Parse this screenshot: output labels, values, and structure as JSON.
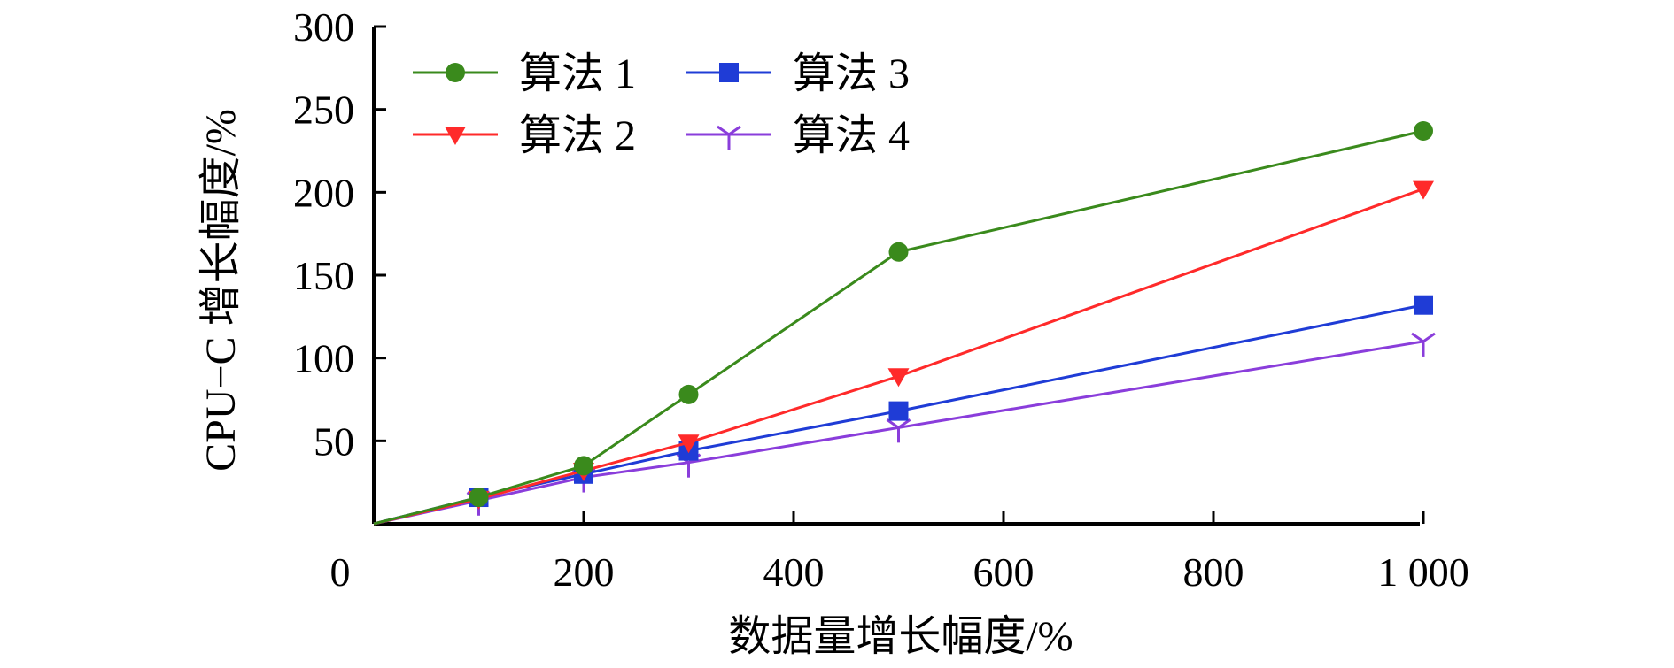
{
  "chart_data": {
    "type": "line",
    "x_tick_values": [
      0,
      200,
      400,
      600,
      800,
      1000
    ],
    "x_tick_labels": [
      "0",
      "200",
      "400",
      "600",
      "800",
      "1 000"
    ],
    "y_tick_values": [
      50,
      100,
      150,
      200,
      250,
      300
    ],
    "y_tick_labels": [
      "50",
      "100",
      "150",
      "200",
      "250",
      "300"
    ],
    "x_category_index": [
      0,
      1,
      2,
      3,
      5,
      10
    ],
    "xlabel": "数据量增长幅度/%",
    "ylabel": "CPU−C 增长幅度/%",
    "ylim": [
      0,
      300
    ],
    "grid": false,
    "legend_position": "top-left",
    "series": [
      {
        "name": "算法 1",
        "color": "#3a8a1c",
        "marker": "circle",
        "values": [
          0,
          16,
          35,
          78,
          164,
          237
        ]
      },
      {
        "name": "算法 2",
        "color": "#ff2a2a",
        "marker": "triangle-down",
        "values": [
          0,
          15,
          32,
          49,
          89,
          202
        ]
      },
      {
        "name": "算法 3",
        "color": "#1f3cd6",
        "marker": "square",
        "values": [
          0,
          16,
          30,
          44,
          68,
          132
        ]
      },
      {
        "name": "算法 4",
        "color": "#8a3ddb",
        "marker": "tri-down",
        "values": [
          0,
          14,
          28,
          37,
          58,
          110
        ]
      }
    ]
  }
}
